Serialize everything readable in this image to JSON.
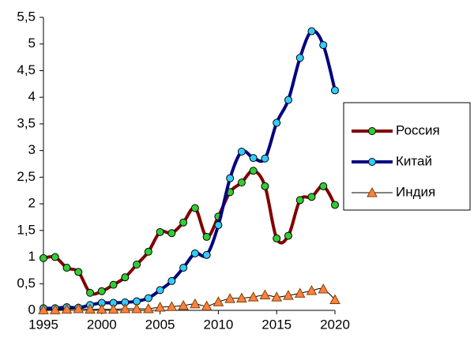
{
  "chart_data": {
    "type": "line",
    "x": [
      1995,
      1996,
      1997,
      1998,
      1999,
      2000,
      2001,
      2002,
      2003,
      2004,
      2005,
      2006,
      2007,
      2008,
      2009,
      2010,
      2011,
      2012,
      2013,
      2014,
      2015,
      2016,
      2017,
      2018,
      2019,
      2020
    ],
    "xlim": [
      1995,
      2020
    ],
    "xticks": [
      1995,
      2000,
      2005,
      2010,
      2015,
      2020
    ],
    "ylim": [
      0,
      5.5
    ],
    "yticks": [
      0,
      {
        "value": 0.5,
        "label": "0,5"
      },
      1,
      {
        "value": 1.5,
        "label": "1,5"
      },
      2,
      {
        "value": 2.5,
        "label": "2,5"
      },
      3,
      {
        "value": 3.5,
        "label": "3,5"
      },
      4,
      {
        "value": 4.5,
        "label": "4,5"
      },
      5,
      {
        "value": 5.5,
        "label": "5,5"
      }
    ],
    "legend": "right",
    "smooth": true,
    "series": [
      {
        "name": "Россия",
        "color": "#800000",
        "marker": "circle",
        "marker_color": "#33cc33",
        "line_width": 4,
        "values": [
          0.98,
          1.0,
          0.8,
          0.72,
          0.33,
          0.36,
          0.48,
          0.62,
          0.86,
          1.1,
          1.47,
          1.45,
          1.65,
          1.92,
          1.38,
          1.76,
          2.22,
          2.4,
          2.62,
          2.33,
          1.35,
          1.4,
          2.07,
          2.13,
          2.33,
          1.98
        ]
      },
      {
        "name": "Китай",
        "color": "#000080",
        "marker": "circle",
        "marker_color": "#33ccff",
        "line_width": 4,
        "values": [
          0.04,
          0.04,
          0.06,
          0.05,
          0.1,
          0.14,
          0.14,
          0.15,
          0.17,
          0.23,
          0.38,
          0.55,
          0.8,
          1.07,
          1.04,
          1.6,
          2.48,
          2.98,
          2.86,
          2.85,
          3.52,
          3.95,
          4.74,
          5.24,
          4.98,
          4.13
        ]
      },
      {
        "name": "Индия",
        "color": "#000000",
        "marker": "triangle",
        "marker_color": "#ff8040",
        "line_width": 1,
        "values": [
          0.01,
          0.01,
          0.02,
          0.03,
          0.02,
          0.02,
          0.02,
          0.03,
          0.03,
          0.03,
          0.06,
          0.07,
          0.09,
          0.12,
          0.08,
          0.16,
          0.22,
          0.23,
          0.25,
          0.29,
          0.25,
          0.28,
          0.32,
          0.37,
          0.4,
          0.2
        ]
      }
    ]
  }
}
